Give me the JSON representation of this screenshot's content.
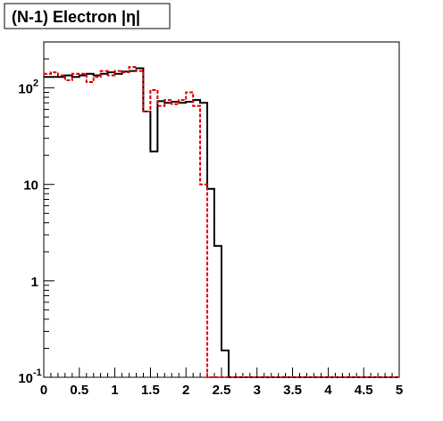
{
  "chart_data": {
    "type": "line",
    "title": "(N-1) Electron |η|",
    "xlabel": "",
    "ylabel": "",
    "xlim": [
      0,
      5
    ],
    "ylim": [
      0.1,
      300
    ],
    "yscale": "log",
    "grid": false,
    "legend": "none",
    "bin_edges": [
      0,
      0.1,
      0.2,
      0.3,
      0.4,
      0.5,
      0.6,
      0.7,
      0.8,
      0.9,
      1.0,
      1.1,
      1.2,
      1.3,
      1.4,
      1.5,
      1.6,
      1.7,
      1.8,
      1.9,
      2.0,
      2.1,
      2.2,
      2.3,
      2.4,
      2.5,
      2.6,
      2.7,
      2.8,
      2.9,
      3.0,
      3.1,
      3.2,
      3.3,
      3.4,
      3.5,
      3.6,
      3.7,
      3.8,
      3.9,
      4.0,
      4.1,
      4.2,
      4.3,
      4.4,
      4.5,
      4.6,
      4.7,
      4.8,
      4.9,
      5.0
    ],
    "x_ticks": [
      "0",
      "0.5",
      "1",
      "1.5",
      "2",
      "2.5",
      "3",
      "3.5",
      "4",
      "4.5",
      "5"
    ],
    "x_tick_values": [
      0,
      0.5,
      1,
      1.5,
      2,
      2.5,
      3,
      3.5,
      4,
      4.5,
      5
    ],
    "y_tick_values": [
      0.1,
      1,
      10,
      100
    ],
    "y_tick_labels": [
      {
        "base": "10",
        "exp": "-1"
      },
      {
        "base": "1",
        "exp": ""
      },
      {
        "base": "10",
        "exp": ""
      },
      {
        "base": "10",
        "exp": "2"
      }
    ],
    "series": [
      {
        "color": "#000000",
        "style": "solid",
        "values": [
          130,
          130,
          130,
          135,
          130,
          135,
          140,
          135,
          140,
          145,
          140,
          148,
          150,
          160,
          57,
          22,
          73,
          70,
          72,
          70,
          72,
          75,
          70,
          9,
          2.3,
          0.19,
          0.1,
          0.1,
          0.1,
          0.1,
          0.1,
          0.1,
          0.1,
          0.1,
          0.1,
          0.1,
          0.1,
          0.1,
          0.1,
          0.1,
          0.1,
          0.1,
          0.1,
          0.1,
          0.1,
          0.1,
          0.1,
          0.1,
          0.1,
          0.1
        ]
      },
      {
        "color": "#e00000",
        "style": "dashed",
        "values": [
          140,
          145,
          135,
          120,
          140,
          140,
          115,
          130,
          150,
          135,
          150,
          145,
          165,
          150,
          57,
          95,
          65,
          75,
          68,
          75,
          90,
          65,
          10,
          0.1,
          0.1,
          0.1,
          0.1,
          0.1,
          0.1,
          0.1,
          0.1,
          0.1,
          0.1,
          0.1,
          0.1,
          0.1,
          0.1,
          0.1,
          0.1,
          0.1,
          0.1,
          0.1,
          0.1,
          0.1,
          0.1,
          0.1,
          0.1,
          0.1,
          0.1,
          0.1
        ]
      }
    ]
  }
}
